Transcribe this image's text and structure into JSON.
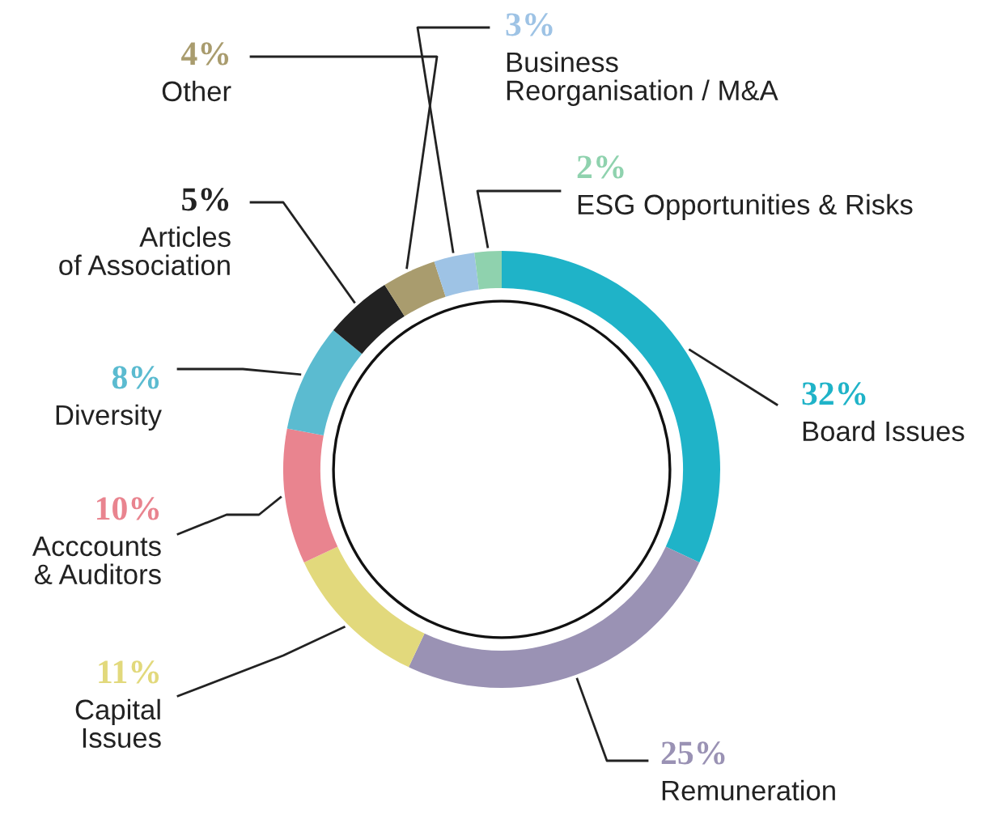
{
  "chart_data": {
    "type": "donut",
    "categories": [
      "Board Issues",
      "Remuneration",
      "Capital\nIssues",
      "Acccounts\n& Auditors",
      "Diversity",
      "Articles\nof Association",
      "Other",
      "Business\nReorganisation / M&A",
      "ESG Opportunities & Risks"
    ],
    "values": [
      32,
      25,
      11,
      10,
      8,
      5,
      4,
      3,
      2
    ],
    "value_labels": [
      "32%",
      "25%",
      "11%",
      "10%",
      "8%",
      "5%",
      "4%",
      "3%",
      "2%"
    ],
    "colors": [
      "#1fb3c8",
      "#9a92b4",
      "#e2d97c",
      "#e9848f",
      "#5bbbd0",
      "#222222",
      "#a99c6e",
      "#9ec3e5",
      "#8fd2ae"
    ]
  }
}
